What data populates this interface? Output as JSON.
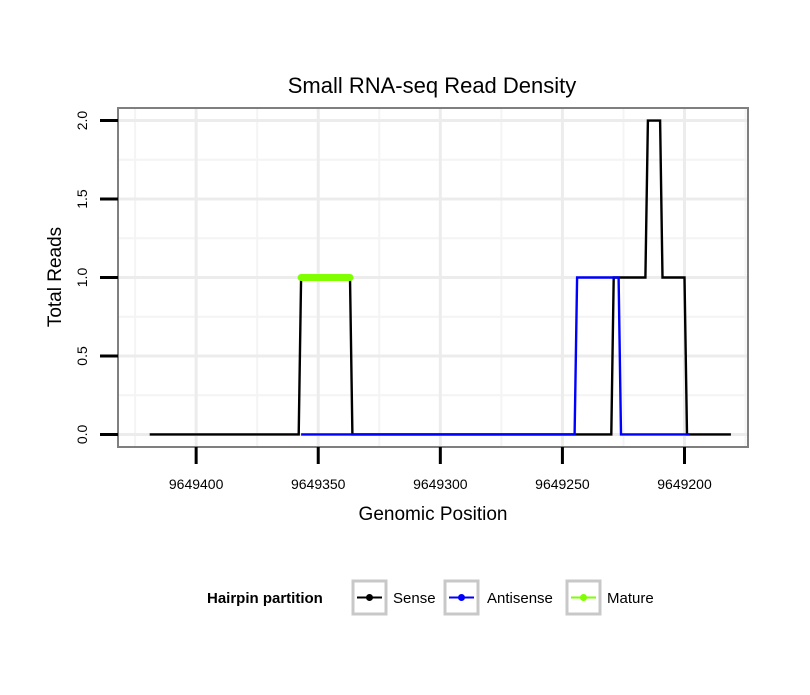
{
  "chart_data": {
    "type": "line",
    "title": "Small RNA-seq Read Density",
    "xlabel": "Genomic Position",
    "ylabel": "Total Reads",
    "xlim": [
      9649432,
      9649174
    ],
    "ylim": [
      -0.08,
      2.08
    ],
    "x_ticks": [
      9649400,
      9649350,
      9649300,
      9649250,
      9649200
    ],
    "y_ticks": [
      0.0,
      0.5,
      1.0,
      1.5,
      2.0
    ],
    "x_tick_labels": [
      "9649400",
      "9649350",
      "9649300",
      "9649250",
      "9649200"
    ],
    "y_tick_labels": [
      "0.0",
      "0.5",
      "1.0",
      "1.5",
      "2.0"
    ],
    "grid": true,
    "legend": {
      "title": "Hairpin partition",
      "position": "bottom",
      "entries": [
        "Sense",
        "Antisense",
        "Mature"
      ]
    },
    "series": [
      {
        "name": "Sense",
        "color": "#000000",
        "x": [
          9649419,
          9649358,
          9649357,
          9649337,
          9649336,
          9649230,
          9649229,
          9649216,
          9649215,
          9649210,
          9649209,
          9649200,
          9649199,
          9649181
        ],
        "y": [
          0,
          0,
          1,
          1,
          0,
          0,
          1,
          1,
          2,
          2,
          1,
          1,
          0,
          0
        ]
      },
      {
        "name": "Antisense",
        "color": "#0000ff",
        "x": [
          9649357,
          9649337,
          9649245,
          9649244,
          9649227,
          9649226,
          9649198
        ],
        "y": [
          0,
          0,
          0,
          1,
          1,
          0,
          0
        ]
      },
      {
        "name": "Mature",
        "color": "#7fff00",
        "x": [
          9649357,
          9649337
        ],
        "y": [
          1,
          1
        ]
      }
    ]
  }
}
